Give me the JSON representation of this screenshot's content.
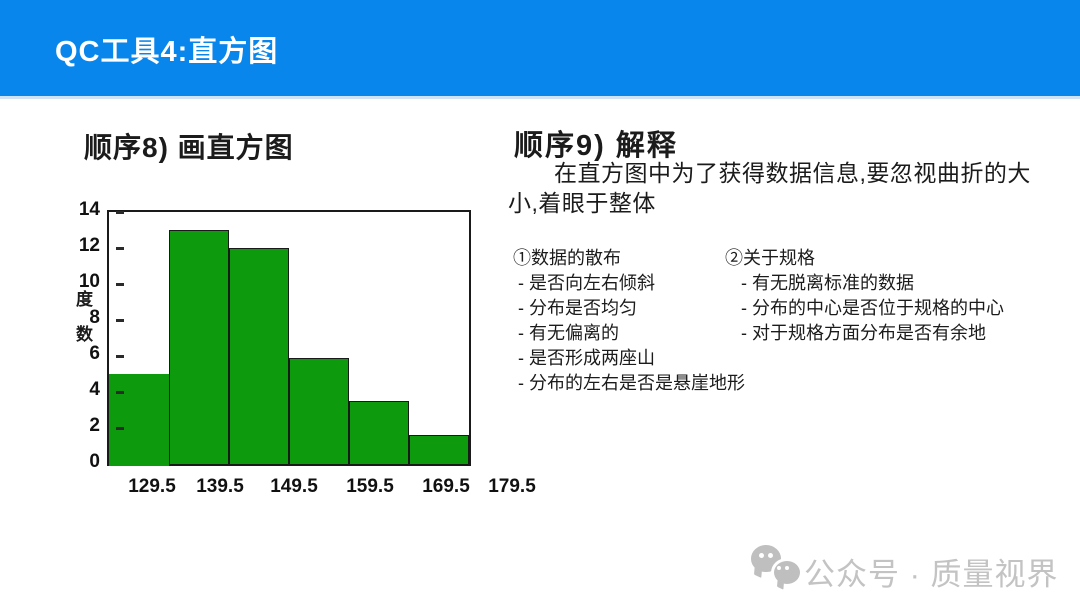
{
  "header": {
    "title": "QC工具4:直方图",
    "bg_color": "#0886ec",
    "text_color": "#ffffff"
  },
  "left_section": {
    "heading": "顺序8) 画直方图"
  },
  "right_section": {
    "heading": "顺序9) 解释",
    "paragraph": "在直方图中为了获得数据信息,要忽视曲折的大小,着眼于整体",
    "columns": [
      {
        "title": "①数据的散布",
        "items": [
          "- 是否向左右倾斜",
          "- 分布是否均匀",
          "- 有无偏离的",
          "- 是否形成两座山",
          "- 分布的左右是否是悬崖地形"
        ]
      },
      {
        "title": "②关于规格",
        "items": [
          "- 有无脱离标准的数据",
          "- 分布的中心是否位于规格的中心",
          "- 对于规格方面分布是否有余地"
        ]
      }
    ]
  },
  "watermark": {
    "text": "公众号 · 质量视界",
    "logo": "wechat-bubbles-icon",
    "color": "#c3c3c3"
  },
  "chart_data": {
    "type": "bar",
    "title": "",
    "xlabel": "",
    "ylabel": "度数",
    "x_tick_labels": [
      "129.5",
      "139.5",
      "149.5",
      "159.5",
      "169.5",
      "179.5"
    ],
    "y_ticks": [
      0,
      2,
      4,
      6,
      8,
      10,
      12,
      14
    ],
    "values": [
      5,
      13,
      12,
      5.9,
      3.5,
      1.6
    ],
    "ylim": [
      0,
      14
    ],
    "bar_color": "#0d9a0d",
    "bar_border_color": "#1a1a1a",
    "grid": false,
    "legend": false
  }
}
